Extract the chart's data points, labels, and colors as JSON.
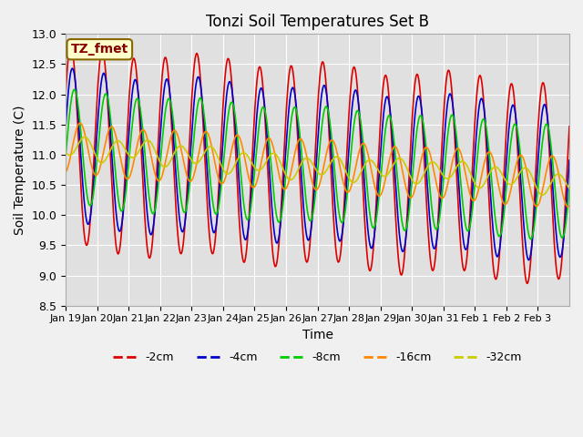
{
  "title": "Tonzi Soil Temperatures Set B",
  "xlabel": "Time",
  "ylabel": "Soil Temperature (C)",
  "ylim": [
    8.5,
    13.0
  ],
  "yticks": [
    8.5,
    9.0,
    9.5,
    10.0,
    10.5,
    11.0,
    11.5,
    12.0,
    12.5,
    13.0
  ],
  "series_labels": [
    "-2cm",
    "-4cm",
    "-8cm",
    "-16cm",
    "-32cm"
  ],
  "series_colors": [
    "#dd0000",
    "#0000cc",
    "#00cc00",
    "#ff8800",
    "#cccc00"
  ],
  "annotation_text": "TZ_fmet",
  "annotation_facecolor": "#ffffcc",
  "annotation_edgecolor": "#886600",
  "annotation_textcolor": "#880000",
  "fig_bg_color": "#f0f0f0",
  "plot_bg_color": "#e0e0e0",
  "n_days": 16,
  "xtick_labels": [
    "Jan 19",
    "Jan 20",
    "Jan 21",
    "Jan 22",
    "Jan 23",
    "Jan 24",
    "Jan 25",
    "Jan 26",
    "Jan 27",
    "Jan 28",
    "Jan 29",
    "Jan 30",
    "Jan 31",
    "Feb 1",
    "Feb 2",
    "Feb 3"
  ],
  "samples_per_day": 48
}
